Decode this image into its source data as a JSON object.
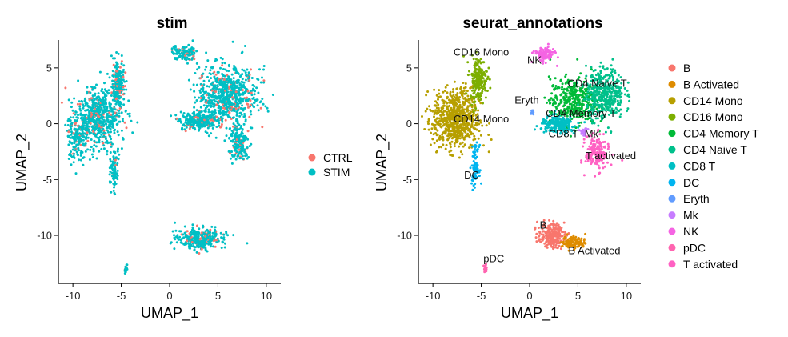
{
  "chart_data": [
    {
      "type": "scatter",
      "title": "stim",
      "xlabel": "UMAP_1",
      "ylabel": "UMAP_2",
      "xlim": [
        -11.5,
        11.5
      ],
      "ylim": [
        -14.3,
        7.5
      ],
      "xticks": [
        -10,
        -5,
        0,
        5,
        10
      ],
      "yticks": [
        5,
        0,
        -5,
        -10
      ],
      "grid": false,
      "legend_position": "right",
      "legend": [
        {
          "name": "CTRL",
          "color": "#F8766D"
        },
        {
          "name": "STIM",
          "color": "#00BFC4"
        }
      ],
      "clusters": [
        {
          "x": -7.5,
          "y": 0.6,
          "sx": 1.7,
          "sy": 1.7,
          "n": 620
        },
        {
          "x": -9.6,
          "y": -1.3,
          "sx": 0.7,
          "sy": 1.3,
          "n": 160
        },
        {
          "x": -5.3,
          "y": 3.5,
          "sx": 0.45,
          "sy": 1.4,
          "n": 200
        },
        {
          "x": -5.7,
          "y": -4.0,
          "sx": 0.25,
          "sy": 1.2,
          "n": 90
        },
        {
          "x": 1.5,
          "y": 6.3,
          "sx": 0.9,
          "sy": 0.45,
          "n": 110
        },
        {
          "x": 6.0,
          "y": 2.5,
          "sx": 2.0,
          "sy": 1.8,
          "n": 750
        },
        {
          "x": 3.0,
          "y": 0.3,
          "sx": 1.3,
          "sy": 0.6,
          "n": 260
        },
        {
          "x": 7.2,
          "y": -1.8,
          "sx": 0.7,
          "sy": 1.0,
          "n": 170
        },
        {
          "x": 3.2,
          "y": -10.3,
          "sx": 1.5,
          "sy": 0.6,
          "n": 330
        },
        {
          "x": -4.5,
          "y": -13.0,
          "sx": 0.12,
          "sy": 0.25,
          "n": 20
        }
      ]
    },
    {
      "type": "scatter",
      "title": "seurat_annotations",
      "xlabel": "UMAP_1",
      "ylabel": "UMAP_2",
      "xlim": [
        -11.5,
        11.5
      ],
      "ylim": [
        -14.3,
        7.5
      ],
      "xticks": [
        -10,
        -5,
        0,
        5,
        10
      ],
      "yticks": [
        5,
        0,
        -5,
        -10
      ],
      "grid": false,
      "legend_position": "right",
      "legend": [
        {
          "name": "B",
          "color": "#F8766D"
        },
        {
          "name": "B Activated",
          "color": "#DE8C00"
        },
        {
          "name": "CD14 Mono",
          "color": "#B79F00"
        },
        {
          "name": "CD16 Mono",
          "color": "#7CAE00"
        },
        {
          "name": "CD4 Memory T",
          "color": "#00BA38"
        },
        {
          "name": "CD4 Naive T",
          "color": "#00C08B"
        },
        {
          "name": "CD8 T",
          "color": "#00BFC4"
        },
        {
          "name": "DC",
          "color": "#00B4F0"
        },
        {
          "name": "Eryth",
          "color": "#619CFF"
        },
        {
          "name": "Mk",
          "color": "#C77CFF"
        },
        {
          "name": "NK",
          "color": "#F564E3"
        },
        {
          "name": "pDC",
          "color": "#FF64B0"
        },
        {
          "name": "T activated",
          "color": "#FF61C3"
        }
      ],
      "clusters": [
        {
          "label": "B",
          "x": 2.2,
          "y": -10.0,
          "sx": 0.9,
          "sy": 0.7,
          "n": 220
        },
        {
          "label": "B Activated",
          "x": 4.6,
          "y": -10.6,
          "sx": 0.8,
          "sy": 0.4,
          "n": 110
        },
        {
          "label": "CD14 Mono",
          "x": -7.6,
          "y": 0.4,
          "sx": 1.6,
          "sy": 1.8,
          "n": 700
        },
        {
          "label": "CD16 Mono",
          "x": -5.3,
          "y": 4.0,
          "sx": 0.6,
          "sy": 1.3,
          "n": 200
        },
        {
          "label": "CD4 Memory T",
          "x": 4.5,
          "y": 2.0,
          "sx": 1.6,
          "sy": 1.4,
          "n": 380
        },
        {
          "label": "CD4 Naive T",
          "x": 7.8,
          "y": 2.7,
          "sx": 1.3,
          "sy": 1.5,
          "n": 420
        },
        {
          "label": "CD8 T",
          "x": 3.0,
          "y": -0.1,
          "sx": 1.2,
          "sy": 0.5,
          "n": 230
        },
        {
          "label": "DC",
          "x": -5.6,
          "y": -3.8,
          "sx": 0.25,
          "sy": 1.2,
          "n": 80
        },
        {
          "label": "Eryth",
          "x": 0.3,
          "y": 1.0,
          "sx": 0.15,
          "sy": 0.15,
          "n": 10
        },
        {
          "label": "Mk",
          "x": 5.6,
          "y": -0.7,
          "sx": 0.25,
          "sy": 0.2,
          "n": 25
        },
        {
          "label": "NK",
          "x": 1.5,
          "y": 6.2,
          "sx": 0.7,
          "sy": 0.45,
          "n": 110
        },
        {
          "label": "pDC",
          "x": -4.6,
          "y": -13.0,
          "sx": 0.12,
          "sy": 0.25,
          "n": 20
        },
        {
          "label": "T activated",
          "x": 7.0,
          "y": -2.6,
          "sx": 0.8,
          "sy": 1.0,
          "n": 180
        }
      ],
      "cluster_labels": [
        {
          "text": "CD16 Mono",
          "x": -5.0,
          "y": 6.1
        },
        {
          "text": "NK",
          "x": 0.5,
          "y": 5.4
        },
        {
          "text": "CD4 Naive T",
          "x": 7.0,
          "y": 3.3
        },
        {
          "text": "Eryth",
          "x": -0.3,
          "y": 1.8
        },
        {
          "text": "CD4 Memory T",
          "x": 5.3,
          "y": 0.6
        },
        {
          "text": "CD14 Mono",
          "x": -5.0,
          "y": 0.1
        },
        {
          "text": "CD8 T",
          "x": 3.5,
          "y": -1.2
        },
        {
          "text": "Mk",
          "x": 6.4,
          "y": -1.2
        },
        {
          "text": "T activated",
          "x": 8.4,
          "y": -3.2
        },
        {
          "text": "DC",
          "x": -6.0,
          "y": -4.9
        },
        {
          "text": "B",
          "x": 1.4,
          "y": -9.4
        },
        {
          "text": "B Activated",
          "x": 6.7,
          "y": -11.7
        },
        {
          "text": "pDC",
          "x": -3.7,
          "y": -12.4
        }
      ]
    }
  ]
}
